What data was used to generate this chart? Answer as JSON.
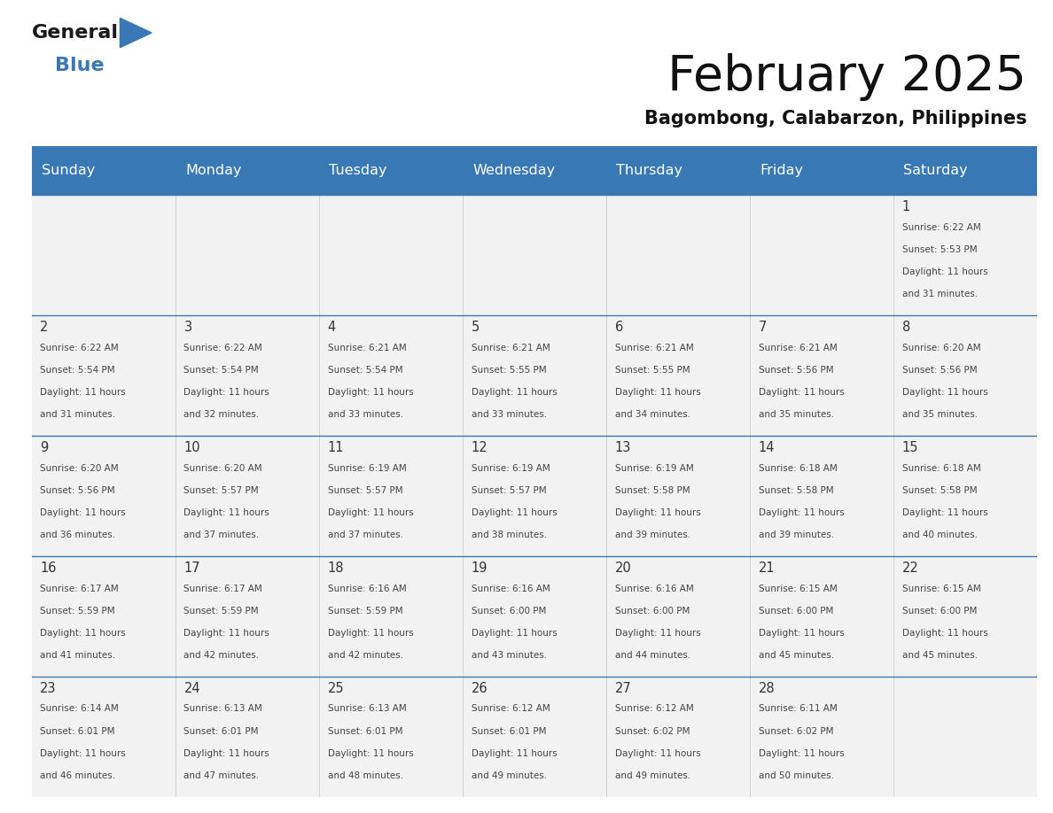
{
  "title": "February 2025",
  "subtitle": "Bagombong, Calabarzon, Philippines",
  "header_color": "#3878b4",
  "header_text_color": "#ffffff",
  "day_names": [
    "Sunday",
    "Monday",
    "Tuesday",
    "Wednesday",
    "Thursday",
    "Friday",
    "Saturday"
  ],
  "background_color": "#ffffff",
  "cell_bg_color": "#f2f2f2",
  "cell_border_color": "#3878b4",
  "day_num_color": "#333333",
  "info_text_color": "#444444",
  "calendar_data": [
    [
      {
        "day": "",
        "sunrise": "",
        "sunset": "",
        "daylight": ""
      },
      {
        "day": "",
        "sunrise": "",
        "sunset": "",
        "daylight": ""
      },
      {
        "day": "",
        "sunrise": "",
        "sunset": "",
        "daylight": ""
      },
      {
        "day": "",
        "sunrise": "",
        "sunset": "",
        "daylight": ""
      },
      {
        "day": "",
        "sunrise": "",
        "sunset": "",
        "daylight": ""
      },
      {
        "day": "",
        "sunrise": "",
        "sunset": "",
        "daylight": ""
      },
      {
        "day": "1",
        "sunrise": "6:22 AM",
        "sunset": "5:53 PM",
        "daylight_h": "11 hours",
        "daylight_m": "and 31 minutes."
      }
    ],
    [
      {
        "day": "2",
        "sunrise": "6:22 AM",
        "sunset": "5:54 PM",
        "daylight_h": "11 hours",
        "daylight_m": "and 31 minutes."
      },
      {
        "day": "3",
        "sunrise": "6:22 AM",
        "sunset": "5:54 PM",
        "daylight_h": "11 hours",
        "daylight_m": "and 32 minutes."
      },
      {
        "day": "4",
        "sunrise": "6:21 AM",
        "sunset": "5:54 PM",
        "daylight_h": "11 hours",
        "daylight_m": "and 33 minutes."
      },
      {
        "day": "5",
        "sunrise": "6:21 AM",
        "sunset": "5:55 PM",
        "daylight_h": "11 hours",
        "daylight_m": "and 33 minutes."
      },
      {
        "day": "6",
        "sunrise": "6:21 AM",
        "sunset": "5:55 PM",
        "daylight_h": "11 hours",
        "daylight_m": "and 34 minutes."
      },
      {
        "day": "7",
        "sunrise": "6:21 AM",
        "sunset": "5:56 PM",
        "daylight_h": "11 hours",
        "daylight_m": "and 35 minutes."
      },
      {
        "day": "8",
        "sunrise": "6:20 AM",
        "sunset": "5:56 PM",
        "daylight_h": "11 hours",
        "daylight_m": "and 35 minutes."
      }
    ],
    [
      {
        "day": "9",
        "sunrise": "6:20 AM",
        "sunset": "5:56 PM",
        "daylight_h": "11 hours",
        "daylight_m": "and 36 minutes."
      },
      {
        "day": "10",
        "sunrise": "6:20 AM",
        "sunset": "5:57 PM",
        "daylight_h": "11 hours",
        "daylight_m": "and 37 minutes."
      },
      {
        "day": "11",
        "sunrise": "6:19 AM",
        "sunset": "5:57 PM",
        "daylight_h": "11 hours",
        "daylight_m": "and 37 minutes."
      },
      {
        "day": "12",
        "sunrise": "6:19 AM",
        "sunset": "5:57 PM",
        "daylight_h": "11 hours",
        "daylight_m": "and 38 minutes."
      },
      {
        "day": "13",
        "sunrise": "6:19 AM",
        "sunset": "5:58 PM",
        "daylight_h": "11 hours",
        "daylight_m": "and 39 minutes."
      },
      {
        "day": "14",
        "sunrise": "6:18 AM",
        "sunset": "5:58 PM",
        "daylight_h": "11 hours",
        "daylight_m": "and 39 minutes."
      },
      {
        "day": "15",
        "sunrise": "6:18 AM",
        "sunset": "5:58 PM",
        "daylight_h": "11 hours",
        "daylight_m": "and 40 minutes."
      }
    ],
    [
      {
        "day": "16",
        "sunrise": "6:17 AM",
        "sunset": "5:59 PM",
        "daylight_h": "11 hours",
        "daylight_m": "and 41 minutes."
      },
      {
        "day": "17",
        "sunrise": "6:17 AM",
        "sunset": "5:59 PM",
        "daylight_h": "11 hours",
        "daylight_m": "and 42 minutes."
      },
      {
        "day": "18",
        "sunrise": "6:16 AM",
        "sunset": "5:59 PM",
        "daylight_h": "11 hours",
        "daylight_m": "and 42 minutes."
      },
      {
        "day": "19",
        "sunrise": "6:16 AM",
        "sunset": "6:00 PM",
        "daylight_h": "11 hours",
        "daylight_m": "and 43 minutes."
      },
      {
        "day": "20",
        "sunrise": "6:16 AM",
        "sunset": "6:00 PM",
        "daylight_h": "11 hours",
        "daylight_m": "and 44 minutes."
      },
      {
        "day": "21",
        "sunrise": "6:15 AM",
        "sunset": "6:00 PM",
        "daylight_h": "11 hours",
        "daylight_m": "and 45 minutes."
      },
      {
        "day": "22",
        "sunrise": "6:15 AM",
        "sunset": "6:00 PM",
        "daylight_h": "11 hours",
        "daylight_m": "and 45 minutes."
      }
    ],
    [
      {
        "day": "23",
        "sunrise": "6:14 AM",
        "sunset": "6:01 PM",
        "daylight_h": "11 hours",
        "daylight_m": "and 46 minutes."
      },
      {
        "day": "24",
        "sunrise": "6:13 AM",
        "sunset": "6:01 PM",
        "daylight_h": "11 hours",
        "daylight_m": "and 47 minutes."
      },
      {
        "day": "25",
        "sunrise": "6:13 AM",
        "sunset": "6:01 PM",
        "daylight_h": "11 hours",
        "daylight_m": "and 48 minutes."
      },
      {
        "day": "26",
        "sunrise": "6:12 AM",
        "sunset": "6:01 PM",
        "daylight_h": "11 hours",
        "daylight_m": "and 49 minutes."
      },
      {
        "day": "27",
        "sunrise": "6:12 AM",
        "sunset": "6:02 PM",
        "daylight_h": "11 hours",
        "daylight_m": "and 49 minutes."
      },
      {
        "day": "28",
        "sunrise": "6:11 AM",
        "sunset": "6:02 PM",
        "daylight_h": "11 hours",
        "daylight_m": "and 50 minutes."
      },
      {
        "day": "",
        "sunrise": "",
        "sunset": "",
        "daylight_h": "",
        "daylight_m": ""
      }
    ]
  ],
  "logo_general_color": "#1a1a1a",
  "logo_blue_color": "#3878b4",
  "logo_triangle_color": "#3878b4"
}
